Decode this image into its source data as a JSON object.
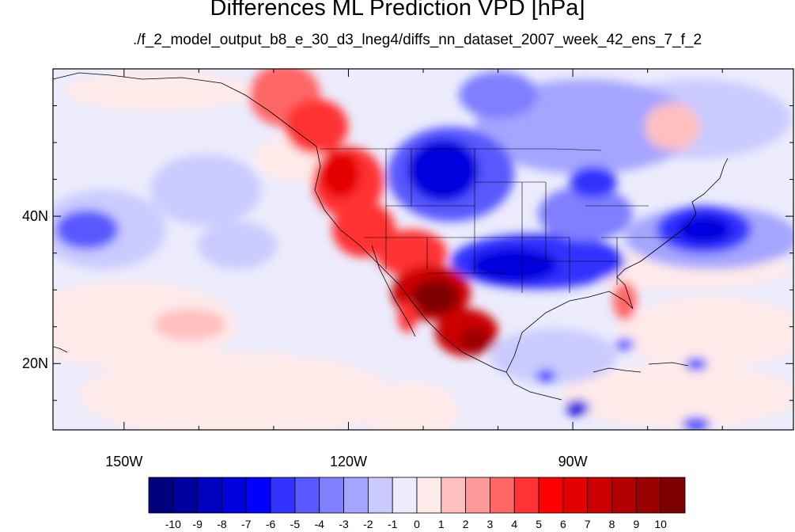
{
  "title": "Differences ML Prediction VPD [hPa]",
  "subtitle": "./f_2_model_output_b8_e_30_d3_lneg4/diffs_nn_dataset_2007_week_42_ens_7_f_2",
  "lat_labels": [
    {
      "text": "40N",
      "lat": 40
    },
    {
      "text": "20N",
      "lat": 20
    }
  ],
  "lon_labels": [
    {
      "text": "150W",
      "lon": -150
    },
    {
      "text": "120W",
      "lon": -120
    },
    {
      "text": "90W",
      "lon": -90
    }
  ],
  "extent": {
    "lon_min": -159.5,
    "lon_max": -60.5,
    "lat_min": 11,
    "lat_max": 60
  },
  "colorbar": {
    "colors": [
      "#00007f",
      "#00009f",
      "#0000bf",
      "#0000df",
      "#0000ff",
      "#3333ff",
      "#5959ff",
      "#7f7fff",
      "#a5a5ff",
      "#cacaff",
      "#ececfd",
      "#ffeaea",
      "#ffbfbf",
      "#ff9999",
      "#ff6666",
      "#ff3333",
      "#ff0000",
      "#e50000",
      "#cc0000",
      "#b20000",
      "#990000",
      "#7f0000"
    ],
    "labels": [
      "-10",
      "-9",
      "-8",
      "-7",
      "-6",
      "-5",
      "-4",
      "-3",
      "-2",
      "-1",
      "0",
      "1",
      "2",
      "3",
      "4",
      "5",
      "6",
      "7",
      "8",
      "9",
      "10"
    ]
  }
}
